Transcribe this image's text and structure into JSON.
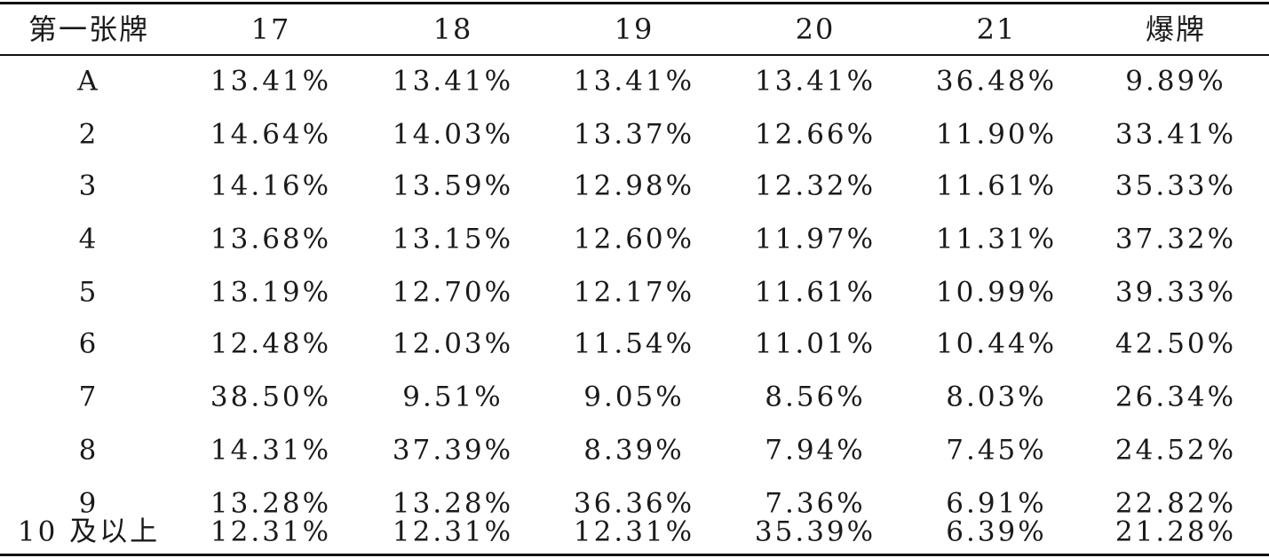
{
  "table": {
    "headers": [
      "第一张牌",
      "17",
      "18",
      "19",
      "20",
      "21",
      "爆牌"
    ],
    "rows": [
      {
        "label": "A",
        "values": [
          "13.41%",
          "13.41%",
          "13.41%",
          "13.41%",
          "36.48%",
          "9.89%"
        ]
      },
      {
        "label": "2",
        "values": [
          "14.64%",
          "14.03%",
          "13.37%",
          "12.66%",
          "11.90%",
          "33.41%"
        ]
      },
      {
        "label": "3",
        "values": [
          "14.16%",
          "13.59%",
          "12.98%",
          "12.32%",
          "11.61%",
          "35.33%"
        ]
      },
      {
        "label": "4",
        "values": [
          "13.68%",
          "13.15%",
          "12.60%",
          "11.97%",
          "11.31%",
          "37.32%"
        ]
      },
      {
        "label": "5",
        "values": [
          "13.19%",
          "12.70%",
          "12.17%",
          "11.61%",
          "10.99%",
          "39.33%"
        ]
      },
      {
        "label": "6",
        "values": [
          "12.48%",
          "12.03%",
          "11.54%",
          "11.01%",
          "10.44%",
          "42.50%"
        ]
      },
      {
        "label": "7",
        "values": [
          "38.50%",
          "9.51%",
          "9.05%",
          "8.56%",
          "8.03%",
          "26.34%"
        ]
      },
      {
        "label": "8",
        "values": [
          "14.31%",
          "37.39%",
          "8.39%",
          "7.94%",
          "7.45%",
          "24.52%"
        ]
      },
      {
        "label": "9",
        "values": [
          "13.28%",
          "13.28%",
          "36.36%",
          "7.36%",
          "6.91%",
          "22.82%"
        ]
      },
      {
        "label": "10 及以上",
        "values": [
          "12.31%",
          "12.31%",
          "12.31%",
          "35.39%",
          "6.39%",
          "21.28%"
        ]
      }
    ]
  }
}
